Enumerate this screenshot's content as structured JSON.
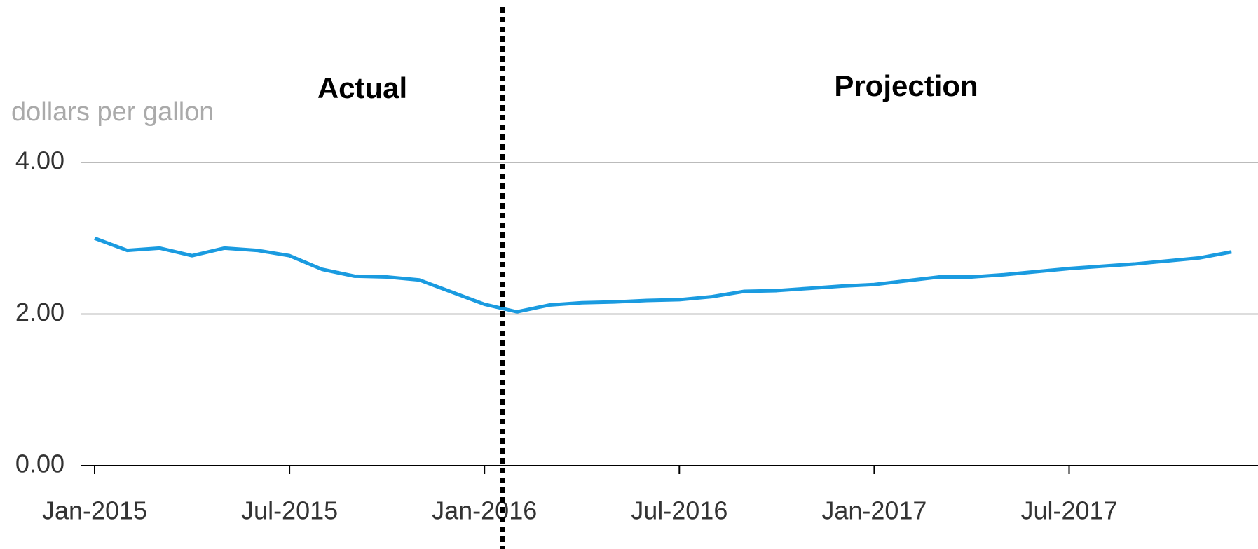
{
  "chart_data": {
    "type": "line",
    "y_axis_label": "dollars per gallon",
    "annotations": [
      "Actual",
      "Projection"
    ],
    "categories": [
      "Jan-2015",
      null,
      null,
      null,
      null,
      null,
      "Jul-2015",
      null,
      null,
      null,
      null,
      null,
      "Jan-2016",
      null,
      null,
      null,
      null,
      null,
      "Jul-2016",
      null,
      null,
      null,
      null,
      null,
      "Jan-2017",
      null,
      null,
      null,
      null,
      null,
      "Jul-2017",
      null,
      null,
      null,
      null,
      null
    ],
    "series": [
      {
        "color": "#1a9be0",
        "values": [
          3.0,
          2.84,
          2.87,
          2.77,
          2.87,
          2.84,
          2.77,
          2.59,
          2.5,
          2.49,
          2.45,
          2.29,
          2.13,
          2.03,
          2.12,
          2.15,
          2.16,
          2.18,
          2.19,
          2.23,
          2.3,
          2.31,
          2.34,
          2.37,
          2.39,
          2.44,
          2.49,
          2.49,
          2.52,
          2.56,
          2.6,
          2.63,
          2.66,
          2.7,
          2.74,
          2.82
        ]
      }
    ],
    "ylim": [
      0,
      4
    ],
    "yticks": [
      {
        "value": 0,
        "label": "0.00"
      },
      {
        "value": 2,
        "label": "2.00"
      },
      {
        "value": 4,
        "label": "4.00"
      }
    ],
    "grid": true
  }
}
